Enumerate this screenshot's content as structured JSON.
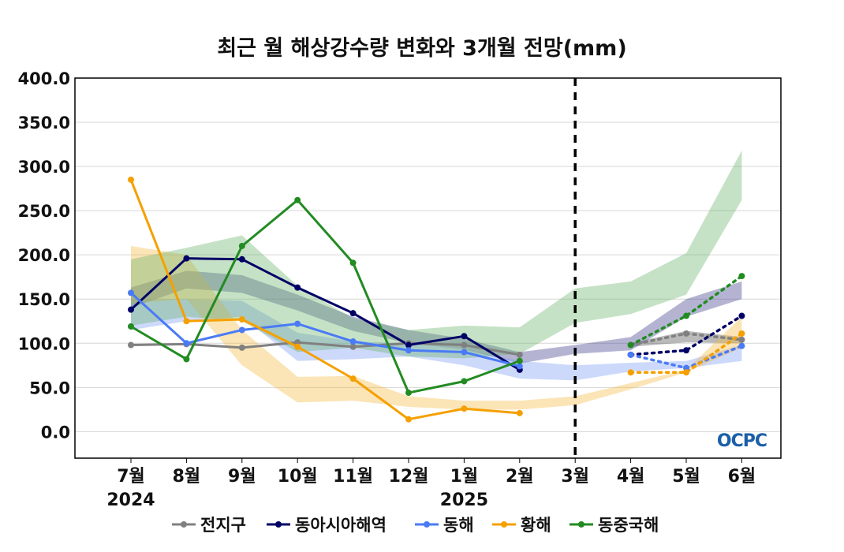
{
  "chart_data": {
    "type": "line",
    "title": "최근 월 해상강수량 변화와 3개월 전망(mm)",
    "categories": [
      "7월",
      "8월",
      "9월",
      "10월",
      "11월",
      "12월",
      "1월",
      "2월",
      "3월",
      "4월",
      "5월",
      "6월"
    ],
    "year_labels": [
      {
        "index": 0,
        "label": "2024"
      },
      {
        "index": 6,
        "label": "2025"
      }
    ],
    "ylim": [
      -30,
      400
    ],
    "yticks": [
      0,
      50,
      100,
      150,
      200,
      250,
      300,
      350,
      400
    ],
    "ytick_labels": [
      "0.0",
      "50.0",
      "100.0",
      "150.0",
      "200.0",
      "250.0",
      "300.0",
      "350.0",
      "400.0"
    ],
    "forecast_divider_index": 8,
    "grid": true,
    "legend_position": "bottom",
    "series": [
      {
        "name": "전지구",
        "color": "#808080",
        "band_color": "#4a4a4a",
        "observed": [
          98,
          99,
          95,
          101,
          96,
          100,
          98,
          87
        ],
        "band_observed": {
          "lower": [
            null,
            null,
            null,
            null,
            null,
            null,
            null,
            88
          ],
          "upper": [
            null,
            null,
            null,
            null,
            null,
            null,
            null,
            88
          ]
        },
        "forecast": {
          "indices": [
            9,
            10,
            11
          ],
          "values": [
            98,
            111,
            104
          ]
        },
        "band_forecast": {
          "lower": [
            null,
            null,
            null,
            null,
            null,
            null,
            null,
            null,
            null,
            96,
            101,
            100
          ],
          "upper": [
            null,
            null,
            null,
            null,
            null,
            null,
            null,
            null,
            null,
            100,
            114,
            107
          ]
        }
      },
      {
        "name": "동아시아해역",
        "color": "#000066",
        "band_color": "#3a3a8a",
        "observed": [
          138,
          196,
          195,
          163,
          134,
          98,
          108,
          70
        ],
        "band_observed": {
          "lower": [
            140,
            162,
            157,
            137,
            114,
            100,
            93,
            77
          ],
          "upper": [
            163,
            182,
            177,
            155,
            130,
            115,
            105,
            90
          ]
        },
        "forecast": {
          "indices": [
            9,
            10,
            11
          ],
          "values": [
            87,
            92,
            131
          ]
        },
        "band_forecast": {
          "lower": [
            null,
            null,
            null,
            null,
            null,
            null,
            null,
            77,
            88,
            92,
            130,
            150
          ],
          "upper": [
            null,
            null,
            null,
            null,
            null,
            null,
            null,
            90,
            98,
            107,
            150,
            170
          ]
        }
      },
      {
        "name": "동해",
        "color": "#4a7af5",
        "band_color": "#7a9af5",
        "observed": [
          157,
          100,
          115,
          122,
          102,
          92,
          90,
          74
        ],
        "band_observed": {
          "lower": [
            115,
            125,
            130,
            80,
            82,
            85,
            75,
            60
          ],
          "upper": [
            150,
            150,
            148,
            112,
            102,
            100,
            93,
            80
          ]
        },
        "forecast": {
          "indices": [
            9,
            10,
            11
          ],
          "values": [
            87,
            72,
            97
          ]
        },
        "band_forecast": {
          "lower": [
            null,
            null,
            null,
            null,
            null,
            null,
            null,
            60,
            58,
            68,
            72,
            80
          ],
          "upper": [
            null,
            null,
            null,
            null,
            null,
            null,
            null,
            80,
            75,
            78,
            80,
            98
          ]
        }
      },
      {
        "name": "황해",
        "color": "#f5a000",
        "band_color": "#f5b840",
        "observed": [
          285,
          125,
          127,
          96,
          60,
          14,
          26,
          21
        ],
        "band_observed": {
          "lower": [
            145,
            150,
            75,
            33,
            35,
            28,
            25,
            25
          ],
          "upper": [
            210,
            200,
            115,
            62,
            63,
            40,
            35,
            35
          ]
        },
        "forecast": {
          "indices": [
            9,
            10,
            11
          ],
          "values": [
            67,
            67,
            111
          ]
        },
        "band_forecast": {
          "lower": [
            null,
            null,
            null,
            null,
            null,
            null,
            null,
            25,
            30,
            48,
            67,
            95
          ],
          "upper": [
            null,
            null,
            null,
            null,
            null,
            null,
            null,
            35,
            40,
            55,
            70,
            130
          ]
        }
      },
      {
        "name": "동중국해",
        "color": "#228b22",
        "band_color": "#6ab46a",
        "observed": [
          119,
          82,
          210,
          262,
          191,
          44,
          57,
          80
        ],
        "band_observed": {
          "lower": [
            120,
            130,
            125,
            90,
            95,
            85,
            83,
            88
          ],
          "upper": [
            195,
            208,
            222,
            165,
            128,
            115,
            120,
            118
          ]
        },
        "forecast": {
          "indices": [
            9,
            10,
            11
          ],
          "values": [
            98,
            131,
            176
          ]
        },
        "band_forecast": {
          "lower": [
            null,
            null,
            null,
            null,
            null,
            null,
            null,
            88,
            123,
            133,
            155,
            262
          ],
          "upper": [
            null,
            null,
            null,
            null,
            null,
            null,
            null,
            118,
            162,
            170,
            202,
            318
          ]
        }
      }
    ]
  },
  "logo": {
    "text": "OCPC"
  }
}
